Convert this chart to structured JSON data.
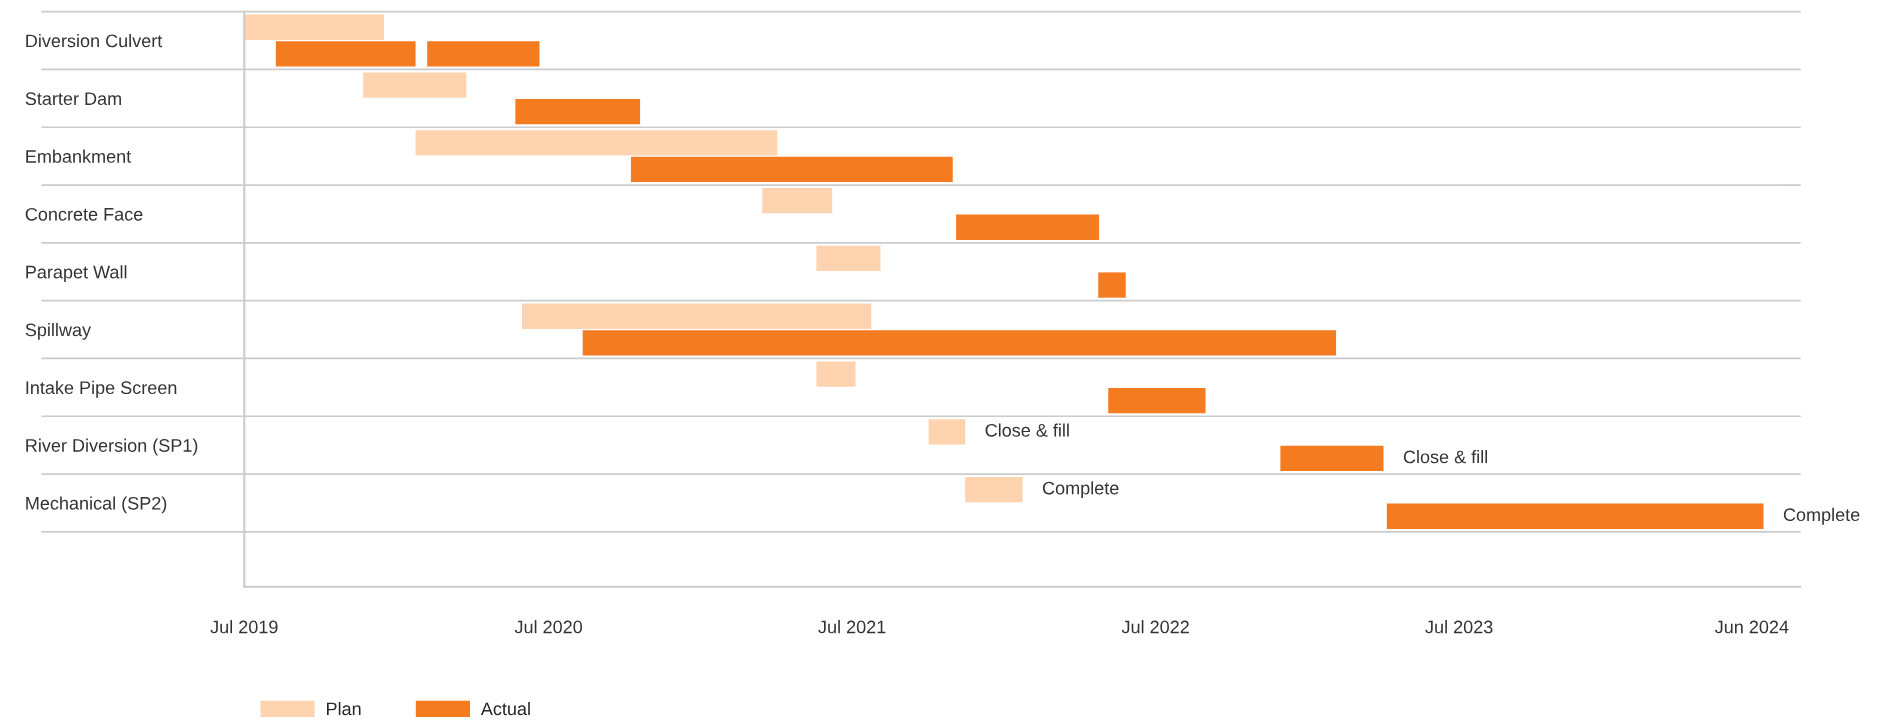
{
  "chart_data": {
    "type": "bar",
    "orientation": "horizontal",
    "categories": [
      "Diversion Culvert",
      "Starter Dam",
      "Embankment",
      "Concrete Face",
      "Parapet Wall",
      "Spillway",
      "Intake Pipe Screen",
      "River Diversion (SP1)",
      "Mechanical (SP2)"
    ],
    "series": [
      {
        "name": "Plan",
        "color": "#fdd3b0",
        "base": [
          18078,
          18221,
          18284,
          18701,
          18766,
          18412,
          18766,
          18901,
          18945
        ],
        "values": [
          168,
          124,
          435,
          84,
          77,
          420,
          47,
          44,
          69
        ]
      },
      {
        "name": "Actual",
        "color": "#f47b20",
        "base": [
          18116,
          18404,
          18543,
          18934,
          19105,
          18485,
          19117,
          19324,
          19452
        ],
        "values": [
          168,
          150,
          387,
          172,
          33,
          906,
          117,
          124,
          453
        ]
      },
      {
        "color": "#f47b20",
        "base": [
          18298,
          null,
          null,
          null,
          null,
          null,
          null,
          null,
          null
        ],
        "values": [
          135,
          null,
          null,
          null,
          null,
          null,
          null,
          null,
          null
        ]
      }
    ],
    "xlim": [
      "2019-07-01",
      "2024-08-14"
    ],
    "xticks": [
      {
        "value": "2019-07-01",
        "label": "Jul 2019"
      },
      {
        "value": "2020-07-01",
        "label": "Jul 2020"
      },
      {
        "value": "2021-07-01",
        "label": "Jul 2021"
      },
      {
        "value": "2022-07-01",
        "label": "Jul 2022"
      },
      {
        "value": "2023-07-01",
        "label": "Jul 2023"
      },
      {
        "value": "2024-06-17",
        "label": "Jun 2024"
      }
    ],
    "annotations": [
      "Close & fill",
      "Close & fill",
      "Complete",
      "Complete"
    ],
    "grid": "y",
    "legend": "bottom left"
  }
}
